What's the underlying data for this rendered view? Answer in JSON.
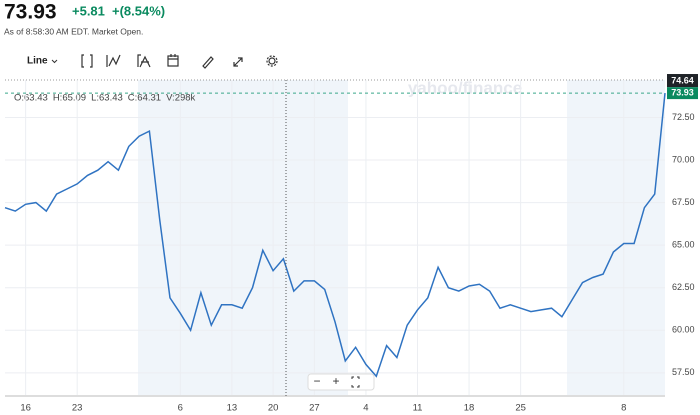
{
  "header": {
    "price": "73.93",
    "change": "+5.81",
    "change_pct": "+(8.54%)",
    "as_of": "As of 8:58:30 AM EDT. Market Open."
  },
  "toolbar": {
    "chart_type": "Line"
  },
  "ohlc": [
    "O:63.43",
    "H:65.09",
    "L:63.43",
    "C:64.31",
    "V:298k"
  ],
  "watermark": "yahoo/finance",
  "zoom": [
    "−",
    "+"
  ],
  "chart_data": {
    "type": "line",
    "categories": [
      null,
      null,
      "16",
      null,
      null,
      null,
      null,
      "23",
      null,
      null,
      null,
      null,
      null,
      null,
      null,
      null,
      null,
      "6",
      null,
      null,
      null,
      null,
      "13",
      null,
      null,
      null,
      "20",
      null,
      null,
      null,
      "27",
      null,
      null,
      null,
      null,
      "4",
      null,
      null,
      null,
      null,
      "11",
      null,
      null,
      null,
      null,
      "18",
      null,
      null,
      null,
      null,
      "25",
      null,
      null,
      null,
      null,
      null,
      null,
      null,
      null,
      null,
      "8",
      null,
      null,
      null,
      null
    ],
    "series": [
      {
        "name": "Close",
        "color": "#2f73c2",
        "values": [
          67.2,
          67.0,
          67.4,
          67.5,
          67.0,
          68.0,
          68.3,
          68.6,
          69.1,
          69.4,
          69.9,
          69.4,
          70.8,
          71.4,
          71.7,
          66.5,
          61.9,
          61.0,
          60.0,
          62.2,
          60.3,
          61.5,
          61.5,
          61.3,
          62.5,
          64.7,
          63.5,
          64.2,
          62.3,
          62.9,
          62.9,
          62.4,
          60.5,
          58.2,
          59.0,
          58.0,
          57.3,
          59.1,
          58.4,
          60.3,
          61.2,
          61.9,
          63.7,
          62.5,
          62.3,
          62.6,
          62.7,
          62.3,
          61.3,
          61.5,
          61.3,
          61.1,
          61.2,
          61.3,
          60.8,
          61.8,
          62.8,
          63.1,
          63.3,
          64.6,
          65.1,
          65.1,
          67.2,
          68.0,
          73.93
        ]
      }
    ],
    "ylim": [
      56.2,
      74.7
    ],
    "yticks": [
      {
        "value": 57.5,
        "label": "57.50"
      },
      {
        "value": 60,
        "label": "60.00"
      },
      {
        "value": 62.5,
        "label": "62.50"
      },
      {
        "value": 65,
        "label": "65.00"
      },
      {
        "value": 67.5,
        "label": "67.50"
      },
      {
        "value": 70,
        "label": "70.00"
      },
      {
        "value": 72.5,
        "label": "72.50"
      }
    ],
    "price_tags": [
      74.64,
      73.93
    ],
    "grid": true
  }
}
